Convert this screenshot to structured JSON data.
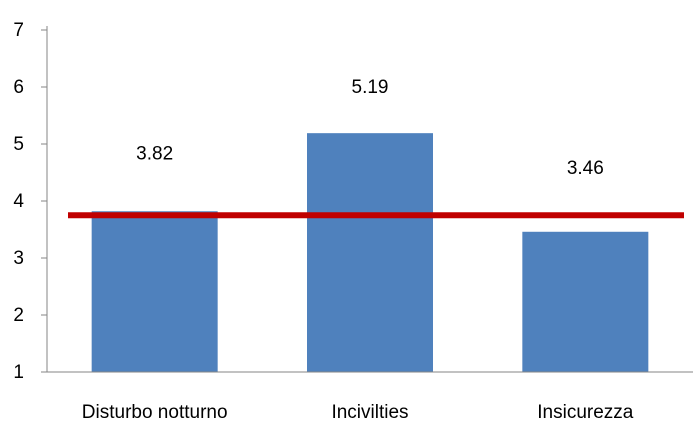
{
  "chart_data": {
    "type": "bar",
    "categories": [
      "Disturbo notturno",
      "Incivilties",
      "Insicurezza"
    ],
    "values": [
      3.82,
      5.19,
      3.46
    ],
    "data_labels": [
      "3.82",
      "5.19",
      "3.46"
    ],
    "ylim": [
      1,
      7
    ],
    "yticks": [
      1,
      2,
      3,
      4,
      5,
      6,
      7
    ],
    "reference_line": {
      "value": 3.75,
      "color": "#C00000"
    },
    "bar_color": "#4F81BD",
    "axis_color": "#868686",
    "grid": false,
    "legend": "none"
  }
}
